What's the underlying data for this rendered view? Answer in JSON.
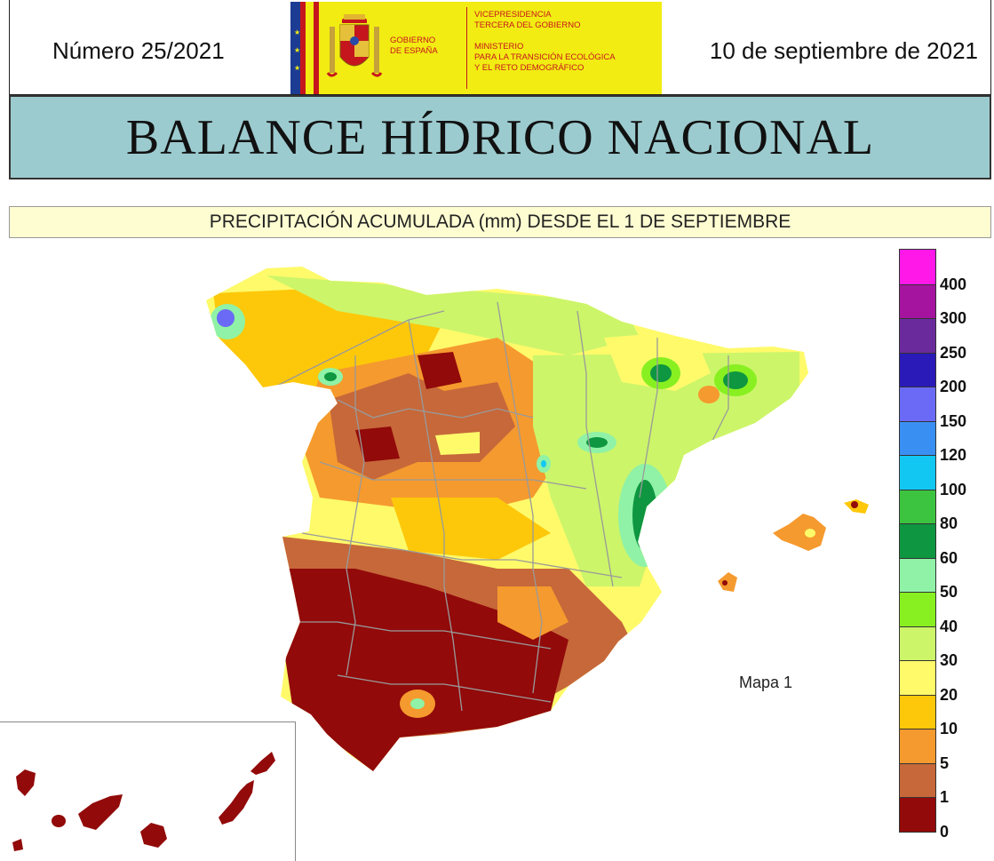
{
  "header": {
    "issue": "Número 25/2021",
    "date": "10 de septiembre de 2021",
    "gobierno_line1": "GOBIERNO",
    "gobierno_line2": "DE ESPAÑA",
    "vice_line1": "VICEPRESIDENCIA",
    "vice_line2": "TERCERA DEL GOBIERNO",
    "min_line1": "MINISTERIO",
    "min_line2": "PARA LA TRANSICIÓN ECOLÓGICA",
    "min_line3": "Y EL RETO DEMOGRÁFICO"
  },
  "title": "BALANCE HÍDRICO NACIONAL",
  "subtitle": "PRECIPITACIÓN ACUMULADA (mm) DESDE EL 1 DE SEPTIEMBRE",
  "map_label": "Mapa 1",
  "legend": {
    "classes": [
      {
        "color": "#ff18e8",
        "label": "400"
      },
      {
        "color": "#a5149e",
        "label": "300"
      },
      {
        "color": "#6a2a9c",
        "label": "250"
      },
      {
        "color": "#2a1ab8",
        "label": "200"
      },
      {
        "color": "#6a6af6",
        "label": "150"
      },
      {
        "color": "#3a90f2",
        "label": "120"
      },
      {
        "color": "#12c8f2",
        "label": "100"
      },
      {
        "color": "#3cc440",
        "label": "80"
      },
      {
        "color": "#0e9640",
        "label": "60"
      },
      {
        "color": "#8ff2a6",
        "label": "50"
      },
      {
        "color": "#88f020",
        "label": "40"
      },
      {
        "color": "#ccf56a",
        "label": "30"
      },
      {
        "color": "#fefa6a",
        "label": "20"
      },
      {
        "color": "#fdc80a",
        "label": "10"
      },
      {
        "color": "#f59a2e",
        "label": "5"
      },
      {
        "color": "#c6683a",
        "label": "1"
      },
      {
        "color": "#920a0a",
        "label": "0"
      }
    ]
  },
  "map_colors": {
    "outside_zero": "#920a0a",
    "one": "#c6683a",
    "five": "#f59a2e",
    "ten": "#fdc80a",
    "twenty": "#fefa6a",
    "thirty": "#ccf56a",
    "forty": "#88f020",
    "fifty": "#8ff2a6",
    "sixty": "#0e9640",
    "eighty": "#3cc440",
    "hundred": "#12c8f2",
    "one_fifty": "#6a6af6",
    "border": "#9a9a9a"
  }
}
